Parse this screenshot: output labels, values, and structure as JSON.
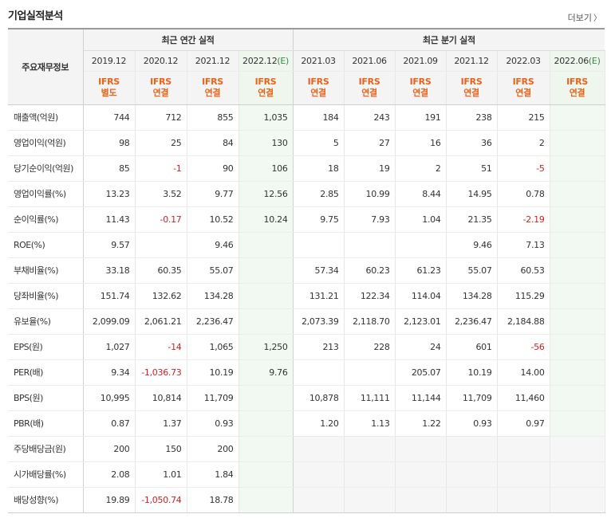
{
  "title": "기업실적분석",
  "more_label": "더보기",
  "corner_label": "주요재무정보",
  "groups": {
    "annual": "최근 연간 실적",
    "quarter": "최근 분기 실적"
  },
  "periods": [
    {
      "label": "2019.12",
      "est": false,
      "ifrs": "IFRS",
      "basis": "별도"
    },
    {
      "label": "2020.12",
      "est": false,
      "ifrs": "IFRS",
      "basis": "연결"
    },
    {
      "label": "2021.12",
      "est": false,
      "ifrs": "IFRS",
      "basis": "연결"
    },
    {
      "label": "2022.12",
      "est": true,
      "ifrs": "IFRS",
      "basis": "연결"
    },
    {
      "label": "2021.03",
      "est": false,
      "ifrs": "IFRS",
      "basis": "연결"
    },
    {
      "label": "2021.06",
      "est": false,
      "ifrs": "IFRS",
      "basis": "연결"
    },
    {
      "label": "2021.09",
      "est": false,
      "ifrs": "IFRS",
      "basis": "연결"
    },
    {
      "label": "2021.12",
      "est": false,
      "ifrs": "IFRS",
      "basis": "연결"
    },
    {
      "label": "2022.03",
      "est": false,
      "ifrs": "IFRS",
      "basis": "연결"
    },
    {
      "label": "2022.06",
      "est": true,
      "ifrs": "IFRS",
      "basis": "연결"
    }
  ],
  "est_marker": "(E)",
  "rows": [
    {
      "label": "매출액(억원)",
      "group_top": false,
      "values": [
        "744",
        "712",
        "855",
        "1,035",
        "184",
        "243",
        "191",
        "238",
        "215",
        ""
      ]
    },
    {
      "label": "영업이익(억원)",
      "group_top": false,
      "values": [
        "98",
        "25",
        "84",
        "130",
        "5",
        "27",
        "16",
        "36",
        "2",
        ""
      ]
    },
    {
      "label": "당기순이익(억원)",
      "group_top": false,
      "values": [
        "85",
        "-1",
        "90",
        "106",
        "18",
        "19",
        "2",
        "51",
        "-5",
        ""
      ]
    },
    {
      "label": "영업이익률(%)",
      "group_top": true,
      "values": [
        "13.23",
        "3.52",
        "9.77",
        "12.56",
        "2.85",
        "10.99",
        "8.44",
        "14.95",
        "0.78",
        ""
      ]
    },
    {
      "label": "순이익률(%)",
      "group_top": false,
      "values": [
        "11.43",
        "-0.17",
        "10.52",
        "10.24",
        "9.75",
        "7.93",
        "1.04",
        "21.35",
        "-2.19",
        ""
      ]
    },
    {
      "label": "ROE(%)",
      "group_top": false,
      "values": [
        "9.57",
        "",
        "9.46",
        "",
        "",
        "",
        "",
        "9.46",
        "7.13",
        ""
      ]
    },
    {
      "label": "부채비율(%)",
      "group_top": true,
      "values": [
        "33.18",
        "60.35",
        "55.07",
        "",
        "57.34",
        "60.23",
        "61.23",
        "55.07",
        "60.53",
        ""
      ]
    },
    {
      "label": "당좌비율(%)",
      "group_top": false,
      "values": [
        "151.74",
        "132.62",
        "134.28",
        "",
        "131.21",
        "122.34",
        "114.04",
        "134.28",
        "115.29",
        ""
      ]
    },
    {
      "label": "유보율(%)",
      "group_top": false,
      "values": [
        "2,099.09",
        "2,061.21",
        "2,236.47",
        "",
        "2,073.39",
        "2,118.70",
        "2,123.01",
        "2,236.47",
        "2,184.88",
        ""
      ]
    },
    {
      "label": "EPS(원)",
      "group_top": true,
      "values": [
        "1,027",
        "-14",
        "1,065",
        "1,250",
        "213",
        "228",
        "24",
        "601",
        "-56",
        ""
      ]
    },
    {
      "label": "PER(배)",
      "group_top": false,
      "values": [
        "9.34",
        "-1,036.73",
        "10.19",
        "9.76",
        "",
        "",
        "205.07",
        "10.19",
        "14.00",
        ""
      ]
    },
    {
      "label": "BPS(원)",
      "group_top": false,
      "values": [
        "10,995",
        "10,814",
        "11,709",
        "",
        "10,878",
        "11,111",
        "11,144",
        "11,709",
        "11,460",
        ""
      ]
    },
    {
      "label": "PBR(배)",
      "group_top": false,
      "values": [
        "0.87",
        "1.37",
        "0.93",
        "",
        "1.20",
        "1.13",
        "1.22",
        "0.93",
        "0.97",
        ""
      ]
    },
    {
      "label": "주당배당금(원)",
      "group_top": true,
      "blank_quarter": true,
      "values": [
        "200",
        "150",
        "200",
        "",
        "",
        "",
        "",
        "",
        "",
        ""
      ]
    },
    {
      "label": "시가배당률(%)",
      "group_top": false,
      "blank_quarter": true,
      "values": [
        "2.08",
        "1.01",
        "1.84",
        "",
        "",
        "",
        "",
        "",
        "",
        ""
      ]
    },
    {
      "label": "배당성향(%)",
      "group_top": false,
      "blank_quarter": true,
      "values": [
        "19.89",
        "-1,050.74",
        "18.78",
        "",
        "",
        "",
        "",
        "",
        "",
        ""
      ]
    }
  ]
}
